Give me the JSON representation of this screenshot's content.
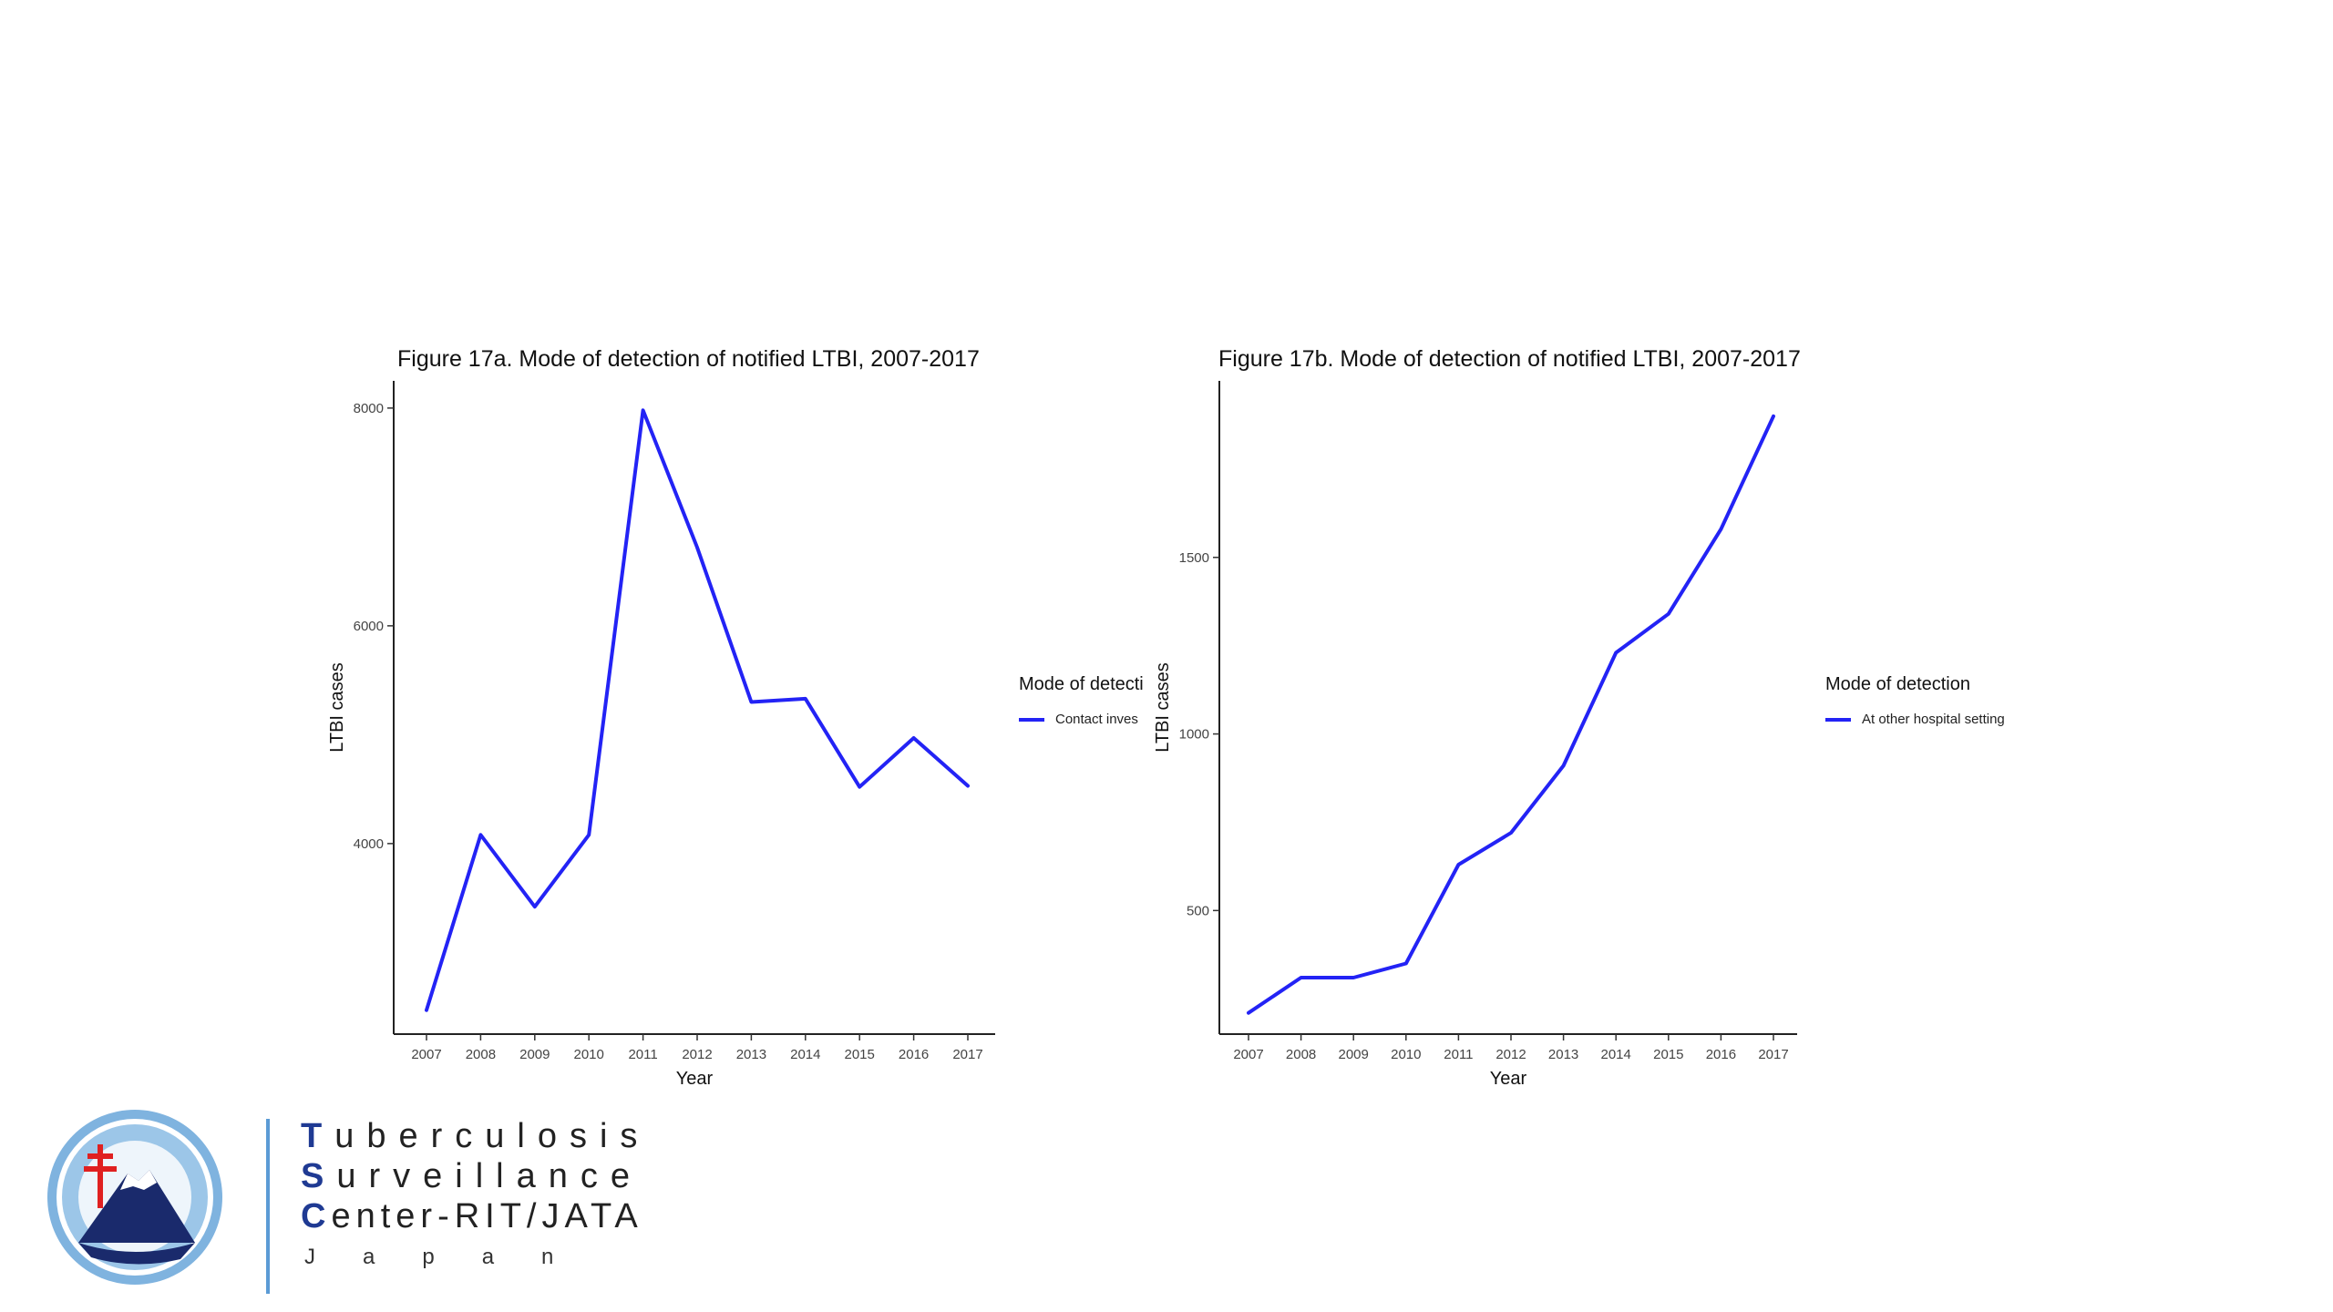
{
  "chart_data": [
    {
      "type": "line",
      "title": "Figure 17a. Mode of detection of notified LTBI, 2007-2017",
      "xlabel": "Year",
      "ylabel": "LTBI cases",
      "x": [
        2007,
        2008,
        2009,
        2010,
        2011,
        2012,
        2013,
        2014,
        2015,
        2016,
        2017
      ],
      "x_tick_labels": [
        "2007",
        "2008",
        "2009",
        "2010",
        "2011",
        "2012",
        "2013",
        "2014",
        "2015",
        "2016",
        "2017"
      ],
      "y_ticks": [
        4000,
        6000,
        8000
      ],
      "ylim": [
        2250,
        8250
      ],
      "series": [
        {
          "name": "Contact inves",
          "color": "#2323f5",
          "values": [
            2470,
            4080,
            3420,
            4080,
            7980,
            6720,
            5300,
            5330,
            4520,
            4970,
            4530
          ]
        }
      ],
      "legend": {
        "title": "Mode of detecti",
        "position": "right"
      },
      "grid": false
    },
    {
      "type": "line",
      "title": "Figure 17b. Mode of detection of notified LTBI, 2007-2017",
      "xlabel": "Year",
      "ylabel": "LTBI cases",
      "x": [
        2007,
        2008,
        2009,
        2010,
        2011,
        2012,
        2013,
        2014,
        2015,
        2016,
        2017
      ],
      "x_tick_labels": [
        "2007",
        "2008",
        "2009",
        "2010",
        "2011",
        "2012",
        "2013",
        "2014",
        "2015",
        "2016",
        "2017"
      ],
      "y_ticks": [
        500,
        1000,
        1500
      ],
      "ylim": [
        150,
        2000
      ],
      "series": [
        {
          "name": "At other hospital setting",
          "color": "#2323f5",
          "values": [
            210,
            310,
            310,
            350,
            630,
            720,
            910,
            1230,
            1340,
            1580,
            1900
          ]
        }
      ],
      "legend": {
        "title": "Mode of detection",
        "position": "right"
      },
      "grid": false
    }
  ],
  "footer": {
    "line1_cap": "T",
    "line1_rest": "uberculosis",
    "line2_cap": "S",
    "line2_rest": "urveillance",
    "line3_cap": "C",
    "line3_rest": "enter-RIT/JATA",
    "country": "Japan"
  },
  "colors": {
    "series": "#2323f5",
    "brand_blue": "#1f3a93",
    "divider": "#5b9bd5"
  }
}
